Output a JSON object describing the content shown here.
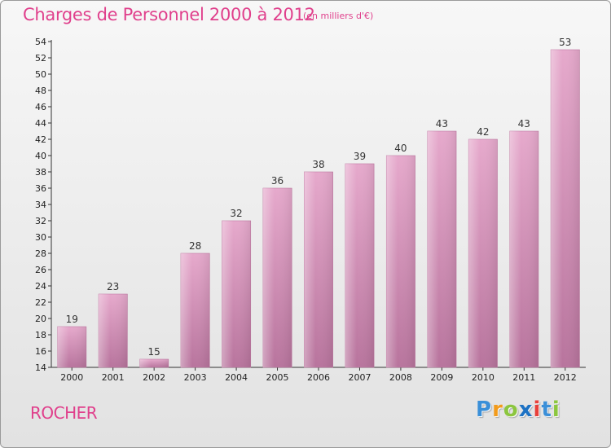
{
  "chart_data": {
    "type": "bar",
    "title": "Charges de Personnel 2000 à 2012",
    "subtitle": "(en milliers d'€)",
    "categories": [
      "2000",
      "2001",
      "2002",
      "2003",
      "2004",
      "2005",
      "2006",
      "2007",
      "2008",
      "2009",
      "2010",
      "2011",
      "2012"
    ],
    "values": [
      19,
      23,
      15,
      28,
      32,
      36,
      38,
      39,
      40,
      43,
      42,
      43,
      53
    ],
    "ylim": [
      14,
      54
    ],
    "yticks": [
      14,
      16,
      18,
      20,
      22,
      24,
      26,
      28,
      30,
      32,
      34,
      36,
      38,
      40,
      42,
      44,
      46,
      48,
      50,
      52,
      54
    ],
    "grid": false,
    "bar_color": "#d48fb7",
    "label_color": "#e0408c"
  },
  "commune": "ROCHER",
  "logo": {
    "letters": [
      "P",
      "r",
      "o",
      "x",
      "i",
      "t",
      "i"
    ],
    "colors": [
      "#3a8fd8",
      "#f29b1c",
      "#8cc63f",
      "#1d72c4",
      "#e8403a",
      "#3a8fd8",
      "#8cc63f"
    ]
  }
}
